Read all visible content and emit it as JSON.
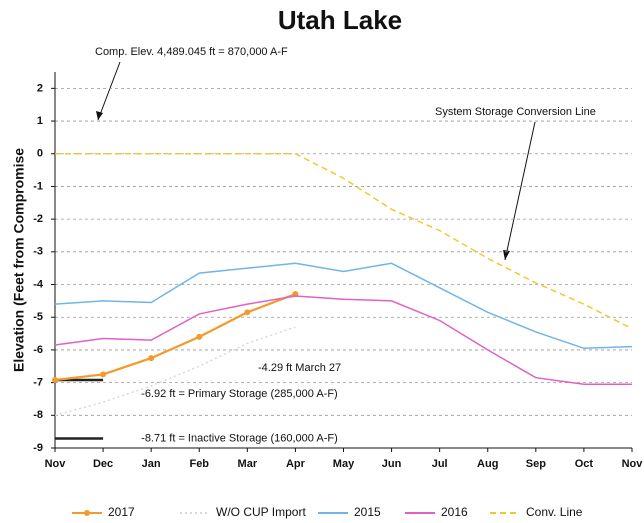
{
  "chart_data": {
    "type": "line",
    "title": "Utah Lake",
    "y_label": "Elevation (Feet from Compromise",
    "categories": [
      "Nov",
      "Dec",
      "Jan",
      "Feb",
      "Mar",
      "Apr",
      "May",
      "Jun",
      "Jul",
      "Aug",
      "Sep",
      "Oct",
      "Nov"
    ],
    "ylim": [
      -9,
      2.5
    ],
    "yticks": [
      -9,
      -8,
      -7,
      -6,
      -5,
      -4,
      -3,
      -2,
      -1,
      0,
      1,
      2
    ],
    "grid": true,
    "series": [
      {
        "name": "2017",
        "color": "#f39a2b",
        "markers": true,
        "values": [
          -6.92,
          -6.75,
          -6.25,
          -5.6,
          -4.85,
          -4.29,
          null,
          null,
          null,
          null,
          null,
          null,
          null
        ]
      },
      {
        "name": "W/O CUP Import",
        "color": "#d8d8d8",
        "dash": "2 3",
        "values": [
          -8.0,
          -7.6,
          -7.1,
          -6.5,
          -5.8,
          -5.3,
          null,
          null,
          null,
          null,
          null,
          null,
          null
        ]
      },
      {
        "name": "2015",
        "color": "#6fb6e6",
        "values": [
          -4.6,
          -4.5,
          -4.55,
          -3.65,
          -3.5,
          -3.35,
          -3.6,
          -3.35,
          -4.1,
          -4.85,
          -5.45,
          -5.95,
          -5.9
        ]
      },
      {
        "name": "2016",
        "color": "#e060c8",
        "values": [
          -5.85,
          -5.65,
          -5.7,
          -4.9,
          -4.6,
          -4.35,
          -4.45,
          -4.5,
          -5.1,
          -6.0,
          -6.85,
          -7.05,
          -7.05
        ]
      },
      {
        "name": "Conv. Line",
        "color": "#f2c830",
        "dash": "6 4",
        "values": [
          0,
          0,
          0,
          0,
          0,
          0,
          -0.75,
          -1.7,
          -2.35,
          -3.2,
          -3.95,
          -4.6,
          -5.35
        ]
      }
    ],
    "reference_lines": [
      {
        "value": -6.92,
        "label": "-6.92 ft = Primary Storage (285,000 A-F)"
      },
      {
        "value": -8.71,
        "label": "-8.71 ft = Inactive Storage (160,000 A-F)"
      }
    ],
    "annotations": [
      "Comp. Elev. 4,489.045 ft = 870,000 A-F",
      "System Storage Conversion Line",
      "-4.29 ft March 27"
    ]
  }
}
